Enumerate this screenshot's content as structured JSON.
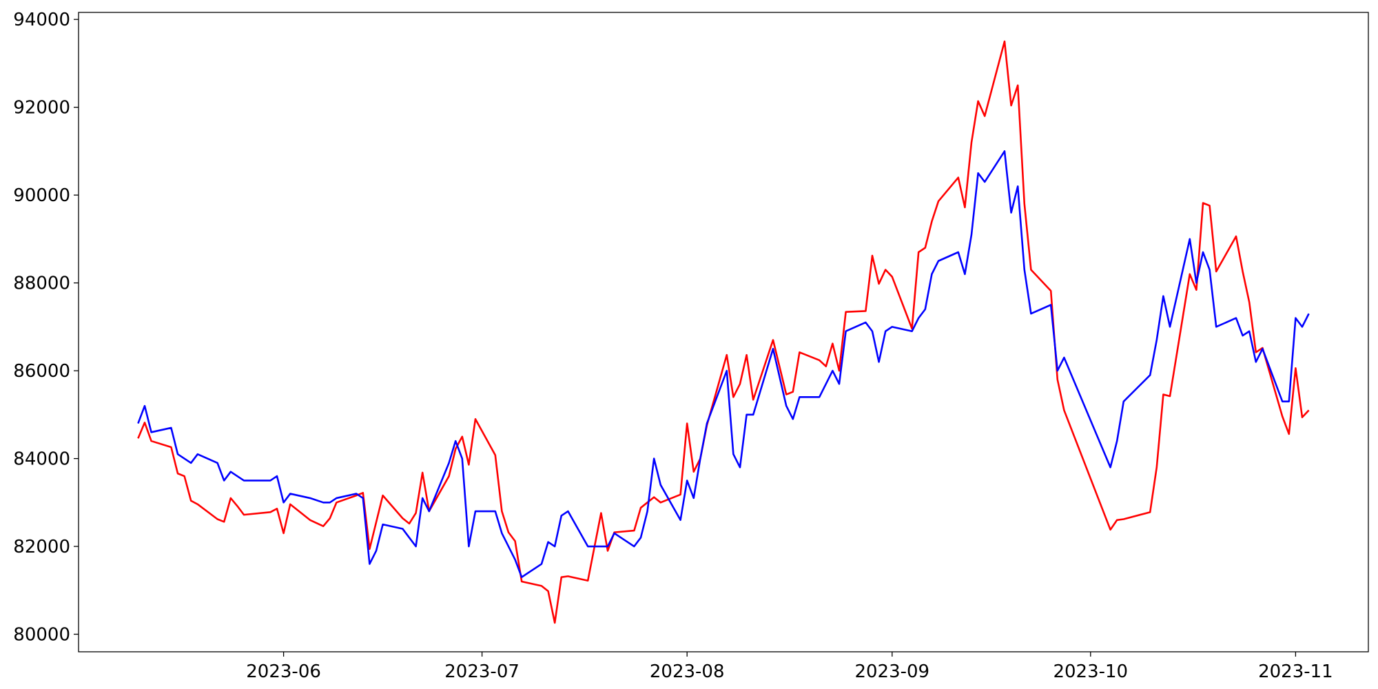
{
  "chart_data": {
    "type": "line",
    "x": [
      "2023-05-10",
      "2023-05-11",
      "2023-05-12",
      "2023-05-15",
      "2023-05-16",
      "2023-05-17",
      "2023-05-18",
      "2023-05-19",
      "2023-05-22",
      "2023-05-23",
      "2023-05-24",
      "2023-05-25",
      "2023-05-26",
      "2023-05-30",
      "2023-05-31",
      "2023-06-01",
      "2023-06-02",
      "2023-06-05",
      "2023-06-07",
      "2023-06-08",
      "2023-06-09",
      "2023-06-12",
      "2023-06-13",
      "2023-06-14",
      "2023-06-15",
      "2023-06-16",
      "2023-06-19",
      "2023-06-20",
      "2023-06-21",
      "2023-06-22",
      "2023-06-23",
      "2023-06-26",
      "2023-06-27",
      "2023-06-28",
      "2023-06-29",
      "2023-06-30",
      "2023-07-03",
      "2023-07-04",
      "2023-07-05",
      "2023-07-06",
      "2023-07-07",
      "2023-07-10",
      "2023-07-11",
      "2023-07-12",
      "2023-07-13",
      "2023-07-14",
      "2023-07-17",
      "2023-07-19",
      "2023-07-20",
      "2023-07-21",
      "2023-07-24",
      "2023-07-25",
      "2023-07-26",
      "2023-07-27",
      "2023-07-28",
      "2023-07-31",
      "2023-08-01",
      "2023-08-02",
      "2023-08-03",
      "2023-08-04",
      "2023-08-07",
      "2023-08-08",
      "2023-08-09",
      "2023-08-10",
      "2023-08-11",
      "2023-08-14",
      "2023-08-16",
      "2023-08-17",
      "2023-08-18",
      "2023-08-21",
      "2023-08-22",
      "2023-08-23",
      "2023-08-24",
      "2023-08-25",
      "2023-08-28",
      "2023-08-29",
      "2023-08-30",
      "2023-08-31",
      "2023-09-01",
      "2023-09-04",
      "2023-09-05",
      "2023-09-06",
      "2023-09-07",
      "2023-09-08",
      "2023-09-11",
      "2023-09-12",
      "2023-09-13",
      "2023-09-14",
      "2023-09-15",
      "2023-09-18",
      "2023-09-19",
      "2023-09-20",
      "2023-09-21",
      "2023-09-22",
      "2023-09-25",
      "2023-09-26",
      "2023-09-27",
      "2023-10-04",
      "2023-10-05",
      "2023-10-06",
      "2023-10-10",
      "2023-10-11",
      "2023-10-12",
      "2023-10-13",
      "2023-10-16",
      "2023-10-17",
      "2023-10-18",
      "2023-10-19",
      "2023-10-20",
      "2023-10-23",
      "2023-10-24",
      "2023-10-25",
      "2023-10-26",
      "2023-10-27",
      "2023-10-30",
      "2023-10-31",
      "2023-11-01",
      "2023-11-02",
      "2023-11-03"
    ],
    "series": [
      {
        "color": "#ff0000",
        "values": [
          84460,
          84820,
          84400,
          84260,
          83660,
          83600,
          83040,
          82960,
          82620,
          82560,
          83100,
          82920,
          82720,
          82780,
          82860,
          82300,
          82960,
          82600,
          82460,
          82640,
          83000,
          83160,
          83220,
          81940,
          82550,
          83160,
          82640,
          82520,
          82760,
          83680,
          82800,
          83600,
          84220,
          84500,
          83860,
          84900,
          84080,
          82800,
          82320,
          82120,
          81200,
          81100,
          80980,
          80260,
          81300,
          81320,
          81220,
          82760,
          81900,
          82320,
          82360,
          82880,
          83000,
          83120,
          83000,
          83180,
          84800,
          83700,
          84000,
          84760,
          86360,
          85400,
          85700,
          86360,
          85340,
          86700,
          85460,
          85520,
          86420,
          86240,
          86100,
          86620,
          86000,
          87340,
          87360,
          88620,
          87980,
          88300,
          88140,
          86960,
          88700,
          88800,
          89400,
          89860,
          90400,
          89720,
          91200,
          92140,
          91800,
          93500,
          92040,
          92500,
          89800,
          88300,
          87820,
          85800,
          85100,
          82380,
          82600,
          82620,
          82780,
          83800,
          85460,
          85420,
          88200,
          87840,
          89820,
          89760,
          88260,
          89060,
          88260,
          87560,
          86420,
          86520,
          84960,
          84560,
          86060,
          84940,
          85100
        ]
      },
      {
        "color": "#0000ff",
        "values": [
          84800,
          85200,
          84600,
          84700,
          84100,
          84000,
          83900,
          84100,
          83900,
          83500,
          83700,
          83600,
          83500,
          83500,
          83600,
          83000,
          83200,
          83100,
          83000,
          83000,
          83100,
          83200,
          83100,
          81600,
          81900,
          82500,
          82400,
          82200,
          82000,
          83100,
          82800,
          83900,
          84400,
          84000,
          82000,
          82800,
          82800,
          82300,
          82000,
          81700,
          81300,
          81600,
          82100,
          82000,
          82700,
          82800,
          82000,
          82000,
          82000,
          82300,
          82000,
          82200,
          82800,
          84000,
          83400,
          82600,
          83500,
          83100,
          84000,
          84800,
          86000,
          84100,
          83800,
          85000,
          85000,
          86500,
          85200,
          84900,
          85400,
          85400,
          85700,
          86000,
          85700,
          86900,
          87100,
          86900,
          86200,
          86900,
          87000,
          86900,
          87200,
          87400,
          88200,
          88500,
          88700,
          88200,
          89100,
          90500,
          90300,
          91000,
          89600,
          90200,
          88300,
          87300,
          87500,
          86000,
          86300,
          83800,
          84400,
          85300,
          85900,
          86700,
          87700,
          87000,
          89000,
          88000,
          88700,
          88300,
          87000,
          87200,
          86800,
          86900,
          86200,
          86500,
          85300,
          85300,
          87200,
          87000,
          87300
        ]
      }
    ],
    "xlim": [
      "2023-05-01",
      "2023-11-12"
    ],
    "xticks": [
      "2023-06",
      "2023-07",
      "2023-08",
      "2023-09",
      "2023-10",
      "2023-11"
    ],
    "ylim": [
      79600,
      94160
    ],
    "yticks": [
      80000,
      82000,
      84000,
      86000,
      88000,
      90000,
      92000,
      94000
    ]
  }
}
